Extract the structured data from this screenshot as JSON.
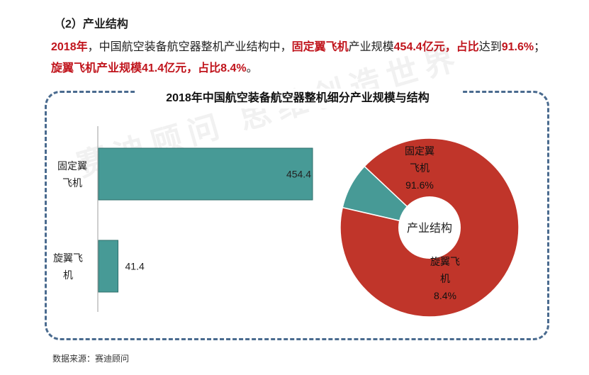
{
  "section": {
    "title": "（2）产业结构"
  },
  "paragraph": {
    "p1": "2018年",
    "p2": "，中国航空装备航空器整机产业结构中，",
    "p3": "固定翼飞机",
    "p4": "产业规模",
    "p5": "454.4亿元",
    "p6": "，",
    "p7": "占比",
    "p8": "达到",
    "p9": "91.6%",
    "p10": "；",
    "p11": "旋翼飞机产业规模41.4亿元",
    "p12": "，",
    "p13": "占比8.4%",
    "p14": "。"
  },
  "source": "数据来源：赛迪顾问",
  "watermark": "赛迪顾问 思维创造世界",
  "colors": {
    "highlight": "#c0141c",
    "bar": "#479a96",
    "donut_fixed": "#c0352a",
    "donut_rotor": "#479a96",
    "frame": "#4a6b8f"
  },
  "chart_data": [
    {
      "type": "bar",
      "title": "2018年中国航空装备航空器整机细分产业规模与结构",
      "orientation": "horizontal",
      "categories": [
        "固定翼飞机",
        "旋翼飞机"
      ],
      "category_lines": [
        [
          "固定翼",
          "飞机"
        ],
        [
          "旋翼飞",
          "机"
        ]
      ],
      "values": [
        454.4,
        41.4
      ],
      "value_labels": [
        "454.4",
        "41.4"
      ]
    },
    {
      "type": "pie",
      "donut": true,
      "center_label": "产业结构",
      "slices": [
        {
          "lines": [
            "固定翼",
            "飞机",
            "91.6%"
          ],
          "value": 91.6
        },
        {
          "lines": [
            "旋翼飞",
            "机",
            "8.4%"
          ],
          "value": 8.4
        }
      ]
    }
  ]
}
